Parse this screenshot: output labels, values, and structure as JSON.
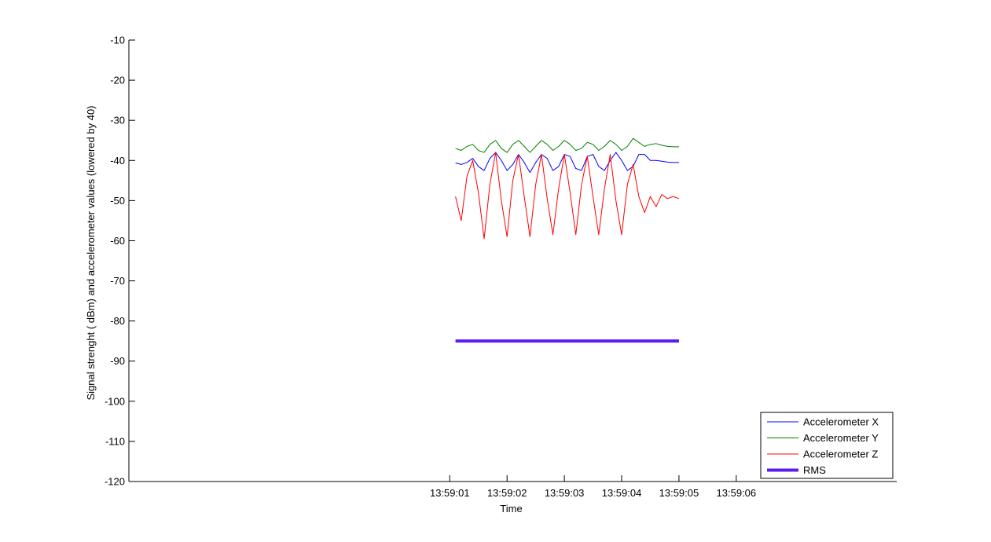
{
  "chart_data": {
    "type": "line",
    "title": "",
    "xlabel": "Time",
    "ylabel": "Signal strenght ( dBm) and accelerometer values (lowered by 40)",
    "ylim": [
      -120,
      -10
    ],
    "yticks": [
      -10,
      -20,
      -30,
      -40,
      -50,
      -60,
      -70,
      -80,
      -90,
      -100,
      -110,
      -120
    ],
    "xlim": [
      -28,
      39
    ],
    "xtick_positions": [
      0,
      5,
      10,
      15,
      20,
      25
    ],
    "xtick_labels": [
      "13:59:01",
      "13:59:02",
      "13:59:03",
      "13:59:04",
      "13:59:05",
      "13:59:06"
    ],
    "legend_position": "bottom-right",
    "series": [
      {
        "name": "Accelerometer X",
        "color": "#0000ff",
        "width": 1,
        "x": [
          0.5,
          1,
          1.5,
          2,
          2.5,
          3,
          3.5,
          4,
          4.5,
          5,
          5.5,
          6,
          6.5,
          7,
          7.5,
          8,
          8.5,
          9,
          9.5,
          10,
          10.5,
          11,
          11.5,
          12,
          12.5,
          13,
          13.5,
          14,
          14.5,
          15,
          15.5,
          16,
          16.5,
          17,
          17.5,
          18,
          18.5,
          19,
          19.5,
          20
        ],
        "y": [
          -40.6,
          -41.0,
          -40.5,
          -39.5,
          -41.5,
          -42.5,
          -39.5,
          -38.0,
          -40.0,
          -42.5,
          -41.0,
          -38.5,
          -40.5,
          -43.0,
          -40.5,
          -38.5,
          -39.5,
          -42.5,
          -41.5,
          -38.5,
          -39.0,
          -42.0,
          -42.5,
          -39.0,
          -38.5,
          -41.5,
          -42.5,
          -40.0,
          -38.0,
          -40.0,
          -42.5,
          -41.5,
          -38.5,
          -38.5,
          -40.0,
          -40.0,
          -40.2,
          -40.4,
          -40.5,
          -40.5
        ]
      },
      {
        "name": "Accelerometer Y",
        "color": "#008000",
        "width": 1,
        "x": [
          0.5,
          1,
          1.5,
          2,
          2.5,
          3,
          3.5,
          4,
          4.5,
          5,
          5.5,
          6,
          6.5,
          7,
          7.5,
          8,
          8.5,
          9,
          9.5,
          10,
          10.5,
          11,
          11.5,
          12,
          12.5,
          13,
          13.5,
          14,
          14.5,
          15,
          15.5,
          16,
          16.5,
          17,
          17.5,
          18,
          18.5,
          19,
          19.5,
          20
        ],
        "y": [
          -37.0,
          -37.5,
          -36.5,
          -36.0,
          -37.5,
          -38.0,
          -36.0,
          -35.0,
          -37.0,
          -38.0,
          -36.0,
          -35.0,
          -36.5,
          -38.0,
          -36.5,
          -35.0,
          -36.0,
          -37.5,
          -36.5,
          -35.0,
          -36.0,
          -37.5,
          -37.0,
          -35.5,
          -36.0,
          -37.5,
          -36.5,
          -35.0,
          -36.0,
          -37.5,
          -36.5,
          -34.5,
          -35.5,
          -36.5,
          -36.0,
          -35.8,
          -36.2,
          -36.5,
          -36.6,
          -36.6
        ]
      },
      {
        "name": "Accelerometer Z",
        "color": "#ff0000",
        "width": 1,
        "x": [
          0.5,
          1,
          1.5,
          2,
          2.5,
          3,
          3.5,
          4,
          4.5,
          5,
          5.5,
          6,
          6.5,
          7,
          7.5,
          8,
          8.5,
          9,
          9.5,
          10,
          10.5,
          11,
          11.5,
          12,
          12.5,
          13,
          13.5,
          14,
          14.5,
          15,
          15.5,
          16,
          16.5,
          17,
          17.5,
          18,
          18.5,
          19,
          19.5,
          20
        ],
        "y": [
          -49.0,
          -55.0,
          -44.0,
          -40.0,
          -48.0,
          -59.5,
          -46.0,
          -38.0,
          -50.0,
          -59.0,
          -45.0,
          -38.5,
          -49.0,
          -59.0,
          -46.0,
          -38.5,
          -49.5,
          -58.5,
          -47.0,
          -38.5,
          -48.0,
          -58.5,
          -46.0,
          -39.0,
          -49.0,
          -58.5,
          -47.0,
          -38.5,
          -50.0,
          -58.5,
          -46.0,
          -41.0,
          -49.0,
          -53.0,
          -49.0,
          -51.5,
          -48.5,
          -49.5,
          -49.0,
          -49.5
        ]
      },
      {
        "name": "RMS",
        "color": "#5b1cf0",
        "width": 4,
        "x": [
          0.5,
          20
        ],
        "y": [
          -85,
          -85
        ]
      }
    ]
  }
}
